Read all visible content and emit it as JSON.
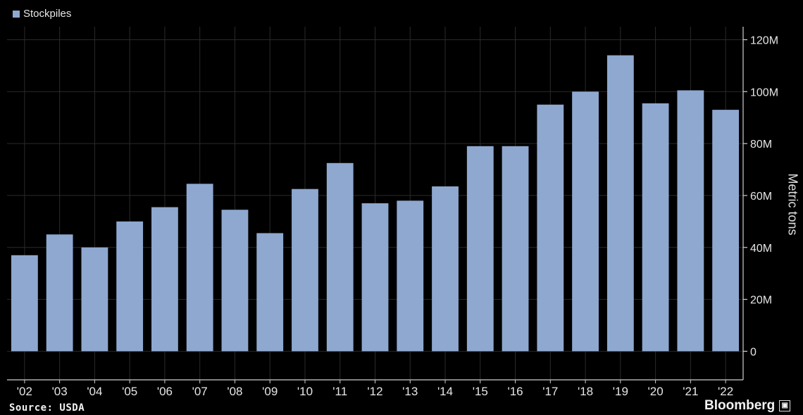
{
  "chart_data": {
    "type": "bar",
    "title": "",
    "legend": {
      "placement": "top-left"
    },
    "series": [
      {
        "name": "Stockpiles",
        "color": "#8ea8d0",
        "values": [
          37,
          45,
          40,
          50,
          55.5,
          64.5,
          54.5,
          45.5,
          62.5,
          72.5,
          57,
          58,
          63.5,
          79,
          79,
          95,
          100,
          114,
          95.5,
          100.5,
          93
        ]
      }
    ],
    "categories": [
      "'02",
      "'03",
      "'04",
      "'05",
      "'06",
      "'07",
      "'08",
      "'09",
      "'10",
      "'11",
      "'12",
      "'13",
      "'14",
      "'15",
      "'16",
      "'17",
      "'18",
      "'19",
      "'20",
      "'21",
      "'22"
    ],
    "unit": "M",
    "ylabel": "Metric tons",
    "ylim": [
      -11,
      125
    ],
    "yticks": [
      0,
      20,
      40,
      60,
      80,
      100,
      120
    ],
    "ytick_labels": [
      "0",
      "20M",
      "40M",
      "60M",
      "80M",
      "100M",
      "120M"
    ],
    "y_axis_side": "right",
    "grid": true,
    "background": "#000000",
    "gridline_color": "#2a2a2a"
  },
  "footer": {
    "source": "Source: USDA",
    "brand": "Bloomberg"
  }
}
